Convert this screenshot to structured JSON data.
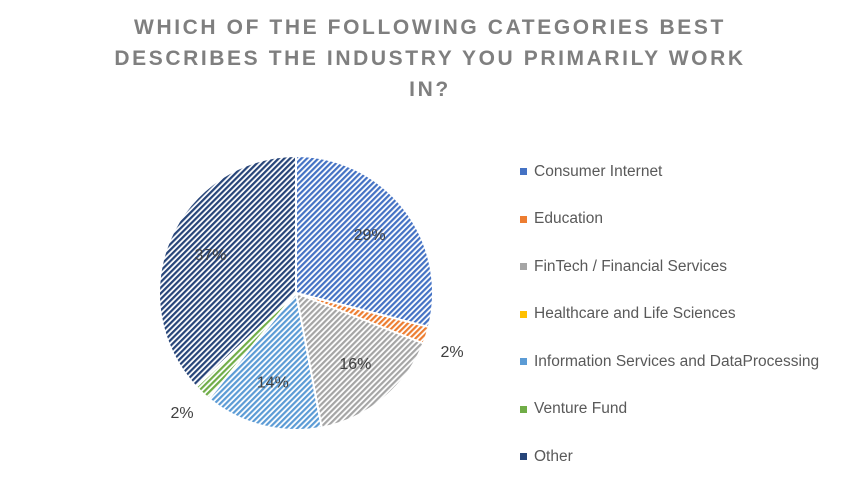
{
  "chart_data": {
    "type": "pie",
    "title_lines": [
      "WHICH OF THE FOLLOWING CATEGORIES BEST",
      "DESCRIBES THE INDUSTRY YOU PRIMARILY WORK",
      "IN?"
    ],
    "categories": [
      "Consumer Internet",
      "Education",
      "FinTech / Financial Services",
      "Healthcare and Life Sciences",
      "Information Services and DataProcessing",
      "Venture Fund",
      "Other"
    ],
    "values": [
      29,
      2,
      16,
      0,
      14,
      2,
      37
    ],
    "data_labels": [
      "29%",
      "2%",
      "16%",
      "",
      "14%",
      "2%",
      "37%"
    ],
    "colors": [
      "#4472c4",
      "#ed7d31",
      "#a5a5a5",
      "#ffc000",
      "#5b9bd5",
      "#70ad47",
      "#264478"
    ],
    "legend_position": "right"
  }
}
